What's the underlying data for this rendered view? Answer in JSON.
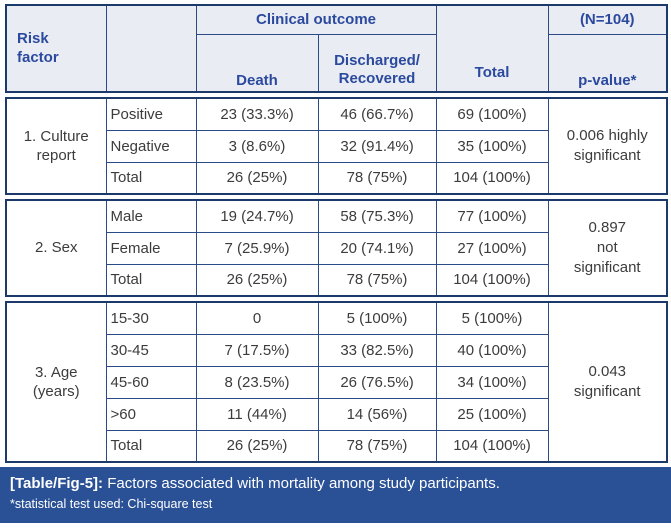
{
  "table": {
    "header": {
      "risk_factor": "Risk\nfactor",
      "clinical_outcome": "Clinical outcome",
      "death": "Death",
      "discharged": "Discharged/\nRecovered",
      "total": "Total",
      "n_label": "(N=104)",
      "p_value": "p-value*"
    },
    "sections": [
      {
        "factor": "1. Culture report",
        "p_value": "0.006 highly\nsignificant",
        "rows": [
          {
            "level": "Positive",
            "death": "23 (33.3%)",
            "discharged": "46 (66.7%)",
            "total": "69 (100%)"
          },
          {
            "level": "Negative",
            "death": "3 (8.6%)",
            "discharged": "32 (91.4%)",
            "total": "35 (100%)"
          },
          {
            "level": "Total",
            "death": "26 (25%)",
            "discharged": "78 (75%)",
            "total": "104 (100%)"
          }
        ]
      },
      {
        "factor": "2. Sex",
        "p_value": "0.897\nnot\nsignificant",
        "rows": [
          {
            "level": "Male",
            "death": "19 (24.7%)",
            "discharged": "58 (75.3%)",
            "total": "77 (100%)"
          },
          {
            "level": "Female",
            "death": "7 (25.9%)",
            "discharged": "20 (74.1%)",
            "total": "27 (100%)"
          },
          {
            "level": "Total",
            "death": "26 (25%)",
            "discharged": "78 (75%)",
            "total": "104 (100%)"
          }
        ]
      },
      {
        "factor": "3. Age (years)",
        "p_value": "0.043\nsignificant",
        "rows": [
          {
            "level": "15-30",
            "death": "0",
            "discharged": "5 (100%)",
            "total": "5 (100%)"
          },
          {
            "level": "30-45",
            "death": "7 (17.5%)",
            "discharged": "33 (82.5%)",
            "total": "40 (100%)"
          },
          {
            "level": "45-60",
            "death": "8 (23.5%)",
            "discharged": "26 (76.5%)",
            "total": "34 (100%)"
          },
          {
            "level": ">60",
            "death": "11 (44%)",
            "discharged": "14 (56%)",
            "total": "25 (100%)"
          },
          {
            "level": "Total",
            "death": "26 (25%)",
            "discharged": "78 (75%)",
            "total": "104 (100%)"
          }
        ]
      }
    ]
  },
  "caption": {
    "label": "[Table/Fig-5]:",
    "text": "Factors associated with mortality among study participants.",
    "footnote": "*statistical test used: Chi-square test"
  },
  "colors": {
    "border_dark": "#1b3a6b",
    "border_inner": "#2c4a86",
    "header_bg": "#eaecf4",
    "header_text": "#2b4a9e",
    "body_text": "#3c3c3c",
    "caption_bg": "#2a5196",
    "caption_text": "#ffffff"
  }
}
